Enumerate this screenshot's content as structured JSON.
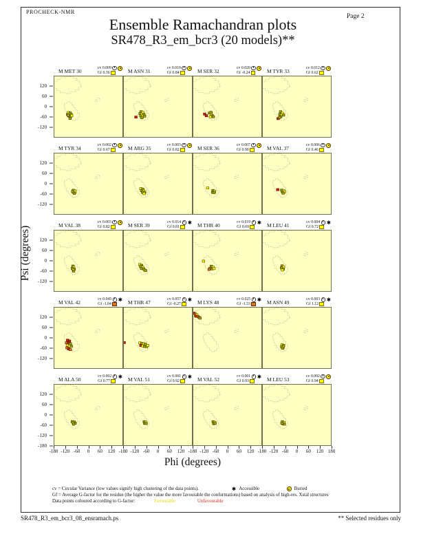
{
  "header": {
    "app": "PROCHECK-NMR",
    "title": "Ensemble Ramachandran plots",
    "subtitle": "SR478_R3_em_bcr3 (20 models)**",
    "page": "Page  2"
  },
  "labels": {
    "cv": "cv",
    "gf": "Gf"
  },
  "legend": {
    "line1": "cv = Circular Variance (low values signify high clustering of the data points).",
    "accessible": "Accessible",
    "buried": "Buried",
    "line2": "Gf = Average G-factor for the residue (the higher the value the more favourable the conformations)  based on analysis of high-res. Xstal structures",
    "line3": "Data points coloured according to G-factor:",
    "favourable": "Favourable",
    "unfavourable": "Unfavourable",
    "accessible_symbol": "✱"
  },
  "footer": {
    "filename": "SR478_R3_em_bcr3_08_ensramach.ps",
    "note": "** Selected residues only"
  },
  "chart_data": {
    "type": "scatter",
    "title": "Ensemble Ramachandran plots",
    "subtitle": "SR478_R3_em_bcr3 (20 models)**",
    "xlabel": "Phi (degrees)",
    "ylabel": "Psi (degrees)",
    "xlim": [
      -180,
      180
    ],
    "ylim": [
      -180,
      180
    ],
    "xticks": [
      -180,
      -120,
      -60,
      0,
      60,
      120,
      180
    ],
    "yticks": [
      120,
      60,
      0,
      -60,
      -120
    ],
    "ybottom_tick": -180,
    "grid": {
      "cols": 4,
      "rows": 5
    },
    "background_color": "#ffffc2",
    "point_colors": {
      "olive": "#a8a800",
      "yellow": "#ffff00",
      "orange": "#e07818",
      "red": "#cc2810"
    },
    "plots": [
      {
        "residue": "M MET 30",
        "cv": "0.009",
        "gf": "0.56",
        "access": "buried",
        "gf_status": "favourable",
        "points": [
          [
            -105,
            -35,
            "yellow"
          ],
          [
            -96,
            -38,
            "olive"
          ],
          [
            -110,
            -46,
            "olive"
          ],
          [
            -101,
            -47,
            "yellow"
          ],
          [
            -91,
            -46,
            "olive"
          ],
          [
            -103,
            -56,
            "olive"
          ],
          [
            -95,
            -60,
            "olive"
          ],
          [
            -88,
            -54,
            "yellow"
          ],
          [
            -97,
            -70,
            "olive"
          ],
          [
            -106,
            -52,
            "olive"
          ]
        ]
      },
      {
        "residue": "M ASN 31",
        "cv": "0.010",
        "gf": "0.84",
        "access": "buried",
        "gf_status": "favourable",
        "points": [
          [
            -89,
            -30,
            "olive"
          ],
          [
            -80,
            -34,
            "yellow"
          ],
          [
            -94,
            -41,
            "olive"
          ],
          [
            -84,
            -45,
            "yellow"
          ],
          [
            -74,
            -46,
            "olive"
          ],
          [
            -90,
            -55,
            "olive"
          ],
          [
            -79,
            -56,
            "yellow"
          ],
          [
            -70,
            -56,
            "olive"
          ],
          [
            -116,
            -62,
            "red"
          ],
          [
            -84,
            -66,
            "olive"
          ]
        ]
      },
      {
        "residue": "M SER 32",
        "cv": "0.020",
        "gf": "-0.24",
        "access": "buried",
        "gf_status": "favourable",
        "points": [
          [
            -120,
            -44,
            "red"
          ],
          [
            -111,
            -54,
            "red"
          ],
          [
            -95,
            -38,
            "olive"
          ],
          [
            -85,
            -44,
            "yellow"
          ],
          [
            -79,
            -54,
            "olive"
          ],
          [
            -90,
            -60,
            "yellow"
          ],
          [
            -74,
            -60,
            "olive"
          ],
          [
            -86,
            -34,
            "olive"
          ]
        ]
      },
      {
        "residue": "M TYR 33",
        "cv": "0.012",
        "gf": "0.62",
        "access": "buried",
        "gf_status": "favourable",
        "points": [
          [
            -86,
            -30,
            "olive"
          ],
          [
            -76,
            -39,
            "yellow"
          ],
          [
            -90,
            -46,
            "olive"
          ],
          [
            -80,
            -50,
            "yellow"
          ],
          [
            -70,
            -50,
            "olive"
          ],
          [
            -85,
            -60,
            "olive"
          ],
          [
            -99,
            -71,
            "red"
          ],
          [
            -92,
            -64,
            "olive"
          ]
        ]
      },
      {
        "residue": "M TYR 34",
        "cv": "0.002",
        "gf": "0.67",
        "access": "buried",
        "gf_status": "favourable",
        "points": [
          [
            -80,
            -39,
            "olive"
          ],
          [
            -72,
            -42,
            "yellow"
          ],
          [
            -79,
            -50,
            "olive"
          ],
          [
            -70,
            -51,
            "yellow"
          ],
          [
            -75,
            -57,
            "olive"
          ],
          [
            -83,
            -47,
            "olive"
          ]
        ]
      },
      {
        "residue": "M ARG 35",
        "cv": "0.003",
        "gf": "0.82",
        "access": "buried",
        "gf_status": "favourable",
        "points": [
          [
            -90,
            -29,
            "yellow"
          ],
          [
            -80,
            -32,
            "olive"
          ],
          [
            -86,
            -41,
            "olive"
          ],
          [
            -75,
            -43,
            "yellow"
          ],
          [
            -81,
            -51,
            "olive"
          ],
          [
            -70,
            -51,
            "olive"
          ],
          [
            -73,
            -59,
            "yellow"
          ]
        ]
      },
      {
        "residue": "M SER 36",
        "cv": "0.007",
        "gf": "0.90",
        "access": "buried",
        "gf_status": "favourable",
        "points": [
          [
            -104,
            -25,
            "yellow"
          ],
          [
            -76,
            -40,
            "olive"
          ],
          [
            -68,
            -45,
            "yellow"
          ],
          [
            -78,
            -51,
            "olive"
          ],
          [
            -70,
            -53,
            "olive"
          ]
        ]
      },
      {
        "residue": "M VAL 37",
        "cv": "0.006",
        "gf": "0.46",
        "access": "buried",
        "gf_status": "favourable",
        "points": [
          [
            -101,
            -35,
            "red"
          ],
          [
            -80,
            -38,
            "olive"
          ],
          [
            -70,
            -41,
            "yellow"
          ],
          [
            -76,
            -48,
            "olive"
          ],
          [
            -65,
            -49,
            "yellow"
          ],
          [
            -72,
            -56,
            "olive"
          ]
        ]
      },
      {
        "residue": "M VAL 38",
        "cv": "0.003",
        "gf": "0.82",
        "access": "buried",
        "gf_status": "favourable",
        "points": [
          [
            -82,
            -31,
            "olive"
          ],
          [
            -78,
            -38,
            "yellow"
          ],
          [
            -85,
            -45,
            "olive"
          ],
          [
            -75,
            -49,
            "olive"
          ],
          [
            -80,
            -55,
            "yellow"
          ],
          [
            -78,
            -61,
            "olive"
          ]
        ]
      },
      {
        "residue": "M SER 39",
        "cv": "0.014",
        "gf": "0.81",
        "access": "accessible",
        "gf_status": "favourable",
        "points": [
          [
            -96,
            -22,
            "yellow"
          ],
          [
            -86,
            -27,
            "olive"
          ],
          [
            -91,
            -35,
            "olive"
          ],
          [
            -80,
            -38,
            "yellow"
          ],
          [
            -86,
            -46,
            "olive"
          ],
          [
            -75,
            -48,
            "olive"
          ],
          [
            -70,
            -55,
            "yellow"
          ],
          [
            -65,
            -58,
            "olive"
          ]
        ]
      },
      {
        "residue": "M THR 40",
        "cv": "0.019",
        "gf": "0.69",
        "access": "accessible",
        "gf_status": "favourable",
        "points": [
          [
            -126,
            -2,
            "yellow"
          ],
          [
            -85,
            -32,
            "olive"
          ],
          [
            -75,
            -38,
            "yellow"
          ],
          [
            -91,
            -44,
            "olive"
          ],
          [
            -96,
            -51,
            "orange"
          ],
          [
            -80,
            -48,
            "olive"
          ],
          [
            -70,
            -46,
            "yellow"
          ]
        ]
      },
      {
        "residue": "M LEU 41",
        "cv": "0.004",
        "gf": "0.72",
        "access": "accessible",
        "gf_status": "favourable",
        "points": [
          [
            -78,
            -30,
            "olive"
          ],
          [
            -70,
            -36,
            "yellow"
          ],
          [
            -81,
            -42,
            "olive"
          ],
          [
            -72,
            -49,
            "olive"
          ],
          [
            -77,
            -55,
            "yellow"
          ]
        ]
      },
      {
        "residue": "M VAL 42",
        "cv": "0.045",
        "gf": "-1.04",
        "access": "accessible",
        "gf_status": "unfavourable",
        "points": [
          [
            -110,
            -14,
            "red"
          ],
          [
            -100,
            -19,
            "red"
          ],
          [
            -116,
            -29,
            "orange"
          ],
          [
            -105,
            -31,
            "red"
          ],
          [
            -95,
            -35,
            "olive"
          ],
          [
            -111,
            -44,
            "yellow"
          ],
          [
            -100,
            -48,
            "yellow"
          ],
          [
            -90,
            -50,
            "olive"
          ],
          [
            -113,
            -59,
            "orange"
          ],
          [
            -104,
            -66,
            "red"
          ],
          [
            -95,
            -70,
            "orange"
          ]
        ]
      },
      {
        "residue": "M THR 47",
        "cv": "0.057",
        "gf": "-0.27",
        "access": "accessible",
        "gf_status": "favourable",
        "points": [
          [
            -178,
            -28,
            "red"
          ],
          [
            -95,
            -30,
            "yellow"
          ],
          [
            -85,
            -33,
            "olive"
          ],
          [
            -75,
            -35,
            "yellow"
          ],
          [
            -66,
            -38,
            "olive"
          ],
          [
            -90,
            -45,
            "red"
          ],
          [
            -80,
            -48,
            "yellow"
          ],
          [
            -70,
            -51,
            "olive"
          ],
          [
            -60,
            -52,
            "olive"
          ],
          [
            -54,
            -45,
            "yellow"
          ]
        ]
      },
      {
        "residue": "M LYS 48",
        "cv": "0.025",
        "gf": "-1.53",
        "access": "accessible",
        "gf_status": "unfavourable",
        "points": [
          [
            -177,
            147,
            "red"
          ],
          [
            -169,
            141,
            "orange"
          ],
          [
            -161,
            137,
            "yellow"
          ],
          [
            -167,
            129,
            "red"
          ],
          [
            -155,
            127,
            "orange"
          ],
          [
            -149,
            121,
            "orange"
          ],
          [
            -144,
            117,
            "olive"
          ]
        ]
      },
      {
        "residue": "M ASN 49",
        "cv": "0.003",
        "gf": "1.12",
        "access": "accessible",
        "gf_status": "favourable",
        "points": [
          [
            -78,
            -40,
            "yellow"
          ],
          [
            -70,
            -45,
            "olive"
          ],
          [
            -80,
            -52,
            "olive"
          ],
          [
            -72,
            -56,
            "yellow"
          ],
          [
            -75,
            -62,
            "olive"
          ]
        ]
      },
      {
        "residue": "M ALA 50",
        "cv": "0.002",
        "gf": "0.77",
        "access": "accessible",
        "gf_status": "favourable",
        "points": [
          [
            -85,
            -40,
            "olive"
          ],
          [
            -75,
            -42,
            "olive"
          ],
          [
            -80,
            -48,
            "yellow"
          ],
          [
            -70,
            -49,
            "olive"
          ],
          [
            -78,
            -55,
            "olive"
          ]
        ]
      },
      {
        "residue": "M VAL 51",
        "cv": "0.001",
        "gf": "0.92",
        "access": "accessible",
        "gf_status": "favourable",
        "points": [
          [
            -72,
            -40,
            "olive"
          ],
          [
            -64,
            -43,
            "yellow"
          ],
          [
            -70,
            -50,
            "olive"
          ],
          [
            -62,
            -51,
            "olive"
          ]
        ]
      },
      {
        "residue": "M VAL 52",
        "cv": "0.001",
        "gf": "0.93",
        "access": "accessible",
        "gf_status": "favourable",
        "points": [
          [
            -75,
            -40,
            "olive"
          ],
          [
            -68,
            -44,
            "yellow"
          ],
          [
            -72,
            -52,
            "olive"
          ],
          [
            -65,
            -50,
            "olive"
          ]
        ]
      },
      {
        "residue": "M LEU 53",
        "cv": "0.002",
        "gf": "0.94",
        "access": "buried",
        "gf_status": "favourable",
        "points": [
          [
            -76,
            -40,
            "olive"
          ],
          [
            -68,
            -45,
            "yellow"
          ],
          [
            -73,
            -53,
            "olive"
          ],
          [
            -66,
            -55,
            "olive"
          ],
          [
            -79,
            -49,
            "olive"
          ]
        ]
      }
    ]
  }
}
